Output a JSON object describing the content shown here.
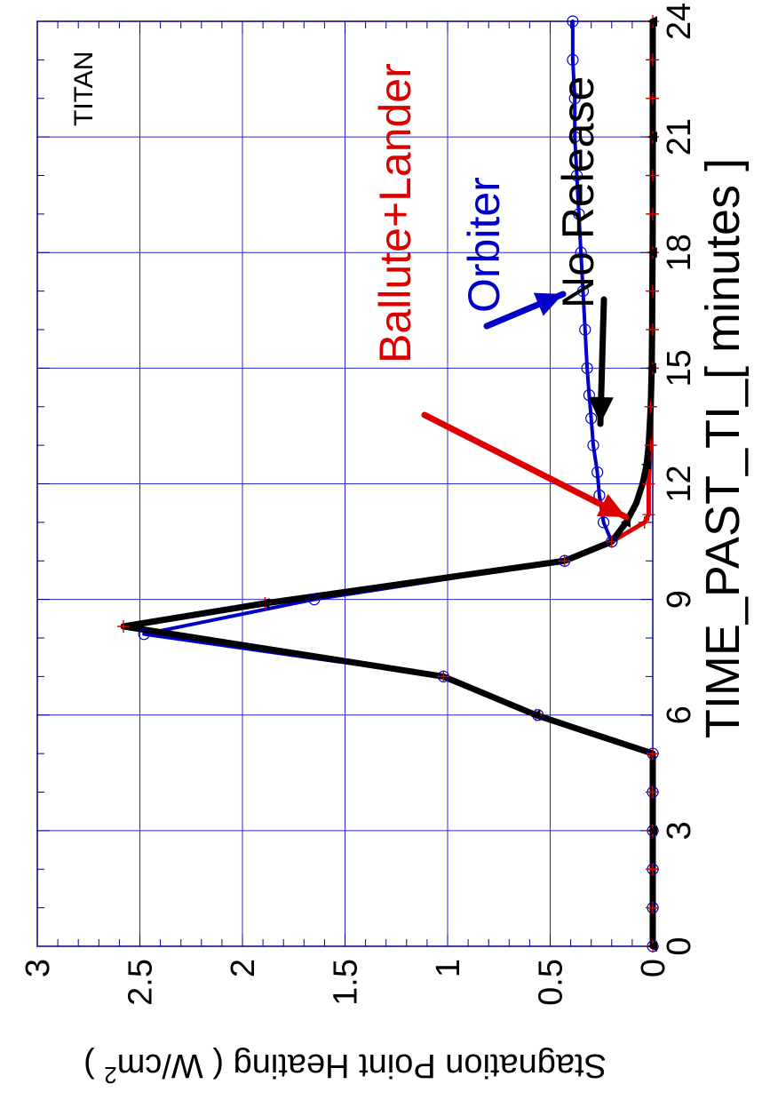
{
  "chart_data": {
    "type": "line",
    "title": "",
    "corner_label": "TITAN",
    "xlabel": "TIME_PAST_TI_[ minutes ]",
    "ylabel": "Stagnation Point Heating ( W/cm",
    "ylabel_sup": "2",
    "ylabel_tail": " )",
    "xlim": [
      0,
      24
    ],
    "ylim": [
      0,
      3
    ],
    "xticks": [
      0,
      3,
      6,
      9,
      12,
      15,
      18,
      21,
      24
    ],
    "yticks": [
      0,
      0.5,
      1,
      1.5,
      2,
      2.5,
      3
    ],
    "ytick_labels": [
      "0",
      "0.5",
      "1",
      "1.5",
      "2",
      "2.5",
      "3"
    ],
    "grid": true,
    "series": [
      {
        "name": "Orbiter",
        "color": "#0000c8",
        "marker": "circle",
        "x": [
          0,
          1,
          2,
          3,
          4,
          5,
          6,
          7,
          8.1,
          9,
          10,
          10.5,
          11,
          11.7,
          12.3,
          13,
          13.7,
          14.3,
          15,
          16,
          17,
          18,
          19,
          20,
          21,
          22,
          23,
          24
        ],
        "y": [
          0,
          0,
          0,
          0,
          0,
          0,
          0.56,
          1.02,
          2.48,
          1.65,
          0.43,
          0.2,
          0.24,
          0.26,
          0.27,
          0.29,
          0.3,
          0.31,
          0.32,
          0.33,
          0.34,
          0.35,
          0.36,
          0.37,
          0.38,
          0.38,
          0.39,
          0.39
        ]
      },
      {
        "name": "Ballute+Lander",
        "color": "#dd0000",
        "marker": "plus",
        "x": [
          0,
          1,
          2,
          3,
          4,
          5,
          6,
          7,
          8.3,
          8.9,
          10,
          10.5,
          11,
          11.2,
          12,
          13,
          14,
          15,
          16,
          17,
          18,
          19,
          20,
          21,
          22,
          23,
          24
        ],
        "y": [
          0,
          0,
          0,
          0,
          0,
          0,
          0.57,
          1.02,
          2.58,
          1.89,
          0.43,
          0.2,
          0.04,
          0.02,
          0.02,
          0.01,
          0.01,
          0.0,
          0.0,
          0.0,
          0.0,
          0.0,
          0.0,
          0.0,
          0.0,
          0.0,
          0.0
        ]
      },
      {
        "name": "No Release",
        "color": "#000000",
        "marker": "triangle",
        "x": [
          0,
          1,
          2,
          3,
          4,
          5,
          6,
          7,
          8.3,
          8.9,
          10,
          10.5,
          11,
          11.5,
          12,
          12.5,
          13,
          14,
          15,
          16,
          17,
          18,
          19,
          20,
          21,
          22,
          23,
          24
        ],
        "y": [
          0,
          0,
          0,
          0,
          0,
          0,
          0.57,
          1.02,
          2.58,
          1.89,
          0.43,
          0.2,
          0.13,
          0.08,
          0.05,
          0.03,
          0.02,
          0.01,
          0.005,
          0.003,
          0.002,
          0.001,
          0.0,
          0.0,
          0.0,
          0.0,
          0.0,
          0.0
        ]
      }
    ],
    "annotations": [
      {
        "text": "Orbiter",
        "color": "#0000c8"
      },
      {
        "text": "No Release",
        "color": "#000000"
      },
      {
        "text": "Ballute+Lander",
        "color": "#dd0000"
      }
    ]
  }
}
